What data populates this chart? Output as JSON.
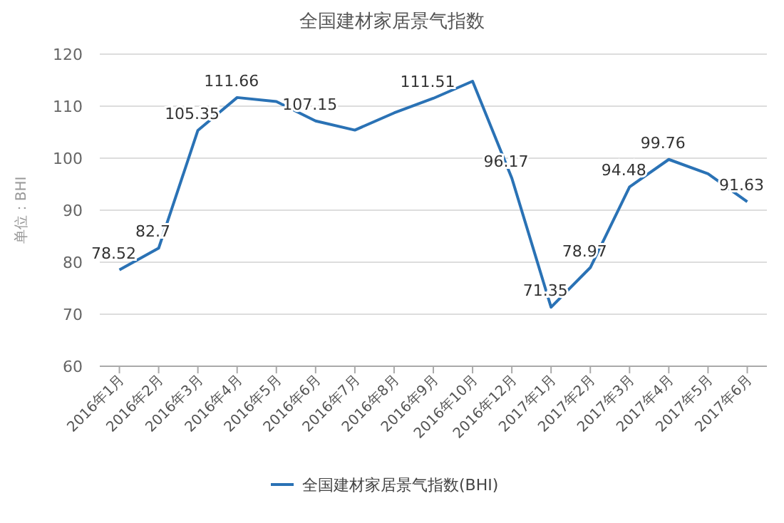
{
  "chart_data": {
    "type": "line",
    "title": "全国建材家居景气指数",
    "ylabel": "单位：BHI",
    "categories": [
      "2016年1月",
      "2016年2月",
      "2016年3月",
      "2016年4月",
      "2016年5月",
      "2016年6月",
      "2016年7月",
      "2016年8月",
      "2016年9月",
      "2016年10月",
      "2016年12月",
      "2017年1月",
      "2017年2月",
      "2017年3月",
      "2017年4月",
      "2017年5月",
      "2017年6月"
    ],
    "series": [
      {
        "name": "全国建材家居景气指数(BHI)",
        "color": "#2a72b5",
        "values": [
          78.52,
          82.7,
          105.35,
          111.66,
          110.9,
          107.15,
          105.4,
          108.7,
          111.51,
          114.8,
          96.17,
          71.35,
          78.97,
          94.48,
          99.76,
          97.0,
          91.63
        ],
        "value_labels": [
          "78.52",
          "82.7",
          "105.35",
          "111.66",
          null,
          "107.15",
          null,
          null,
          "111.51",
          null,
          "96.17",
          "71.35",
          "78.97",
          "94.48",
          "99.76",
          null,
          "91.63"
        ]
      }
    ],
    "ylim": [
      60,
      120
    ],
    "yticks": [
      60,
      70,
      80,
      90,
      100,
      110,
      120
    ],
    "grid": "y",
    "legend": "bottom",
    "marker": "none",
    "line_style": "solid"
  }
}
